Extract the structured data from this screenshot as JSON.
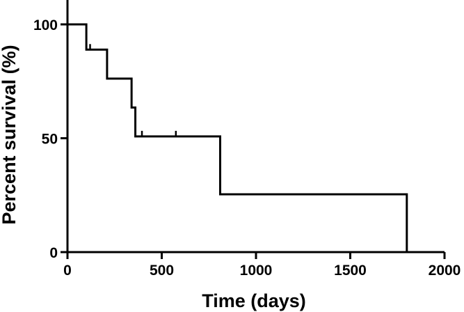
{
  "chart_data": {
    "type": "line",
    "title": "",
    "xlabel": "Time (days)",
    "ylabel": "Percent survival (%)",
    "xlim": [
      0,
      2000
    ],
    "ylim": [
      0,
      110
    ],
    "xticks": [
      0,
      500,
      1000,
      1500,
      2000
    ],
    "yticks": [
      0,
      50,
      100
    ],
    "grid": false,
    "series": [
      {
        "step": true,
        "x": [
          0,
          100,
          210,
          340,
          360,
          810,
          1800
        ],
        "y": [
          100,
          88.9,
          76.2,
          63.5,
          50.8,
          25.4,
          0
        ]
      }
    ],
    "censored": [
      {
        "x": 120,
        "y": 88.9
      },
      {
        "x": 395,
        "y": 50.8
      },
      {
        "x": 575,
        "y": 50.8
      }
    ]
  }
}
